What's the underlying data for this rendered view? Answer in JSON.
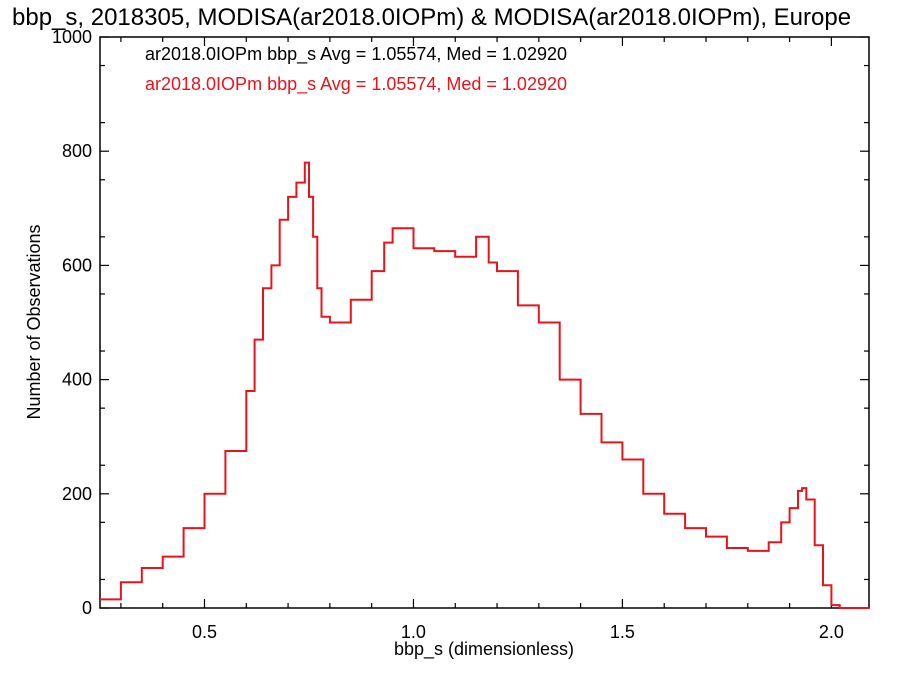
{
  "chart_data": {
    "type": "histogram",
    "title": "bbp_s, 2018305, MODISA(ar2018.0IOPm) & MODISA(ar2018.0IOPm), Europe",
    "xlabel": "bbp_s (dimensionless)",
    "ylabel": "Number of Observations",
    "xlim": [
      0.25,
      2.09
    ],
    "ylim": [
      0,
      1000
    ],
    "xticks": [
      "0.5",
      "1.0",
      "1.5",
      "2.0"
    ],
    "xtick_values": [
      0.5,
      1.0,
      1.5,
      2.0
    ],
    "yticks": [
      "0",
      "200",
      "400",
      "600",
      "800",
      "1000"
    ],
    "ytick_values": [
      0,
      200,
      400,
      600,
      800,
      1000
    ],
    "grid": false,
    "legend": [
      {
        "text": "ar2018.0IOPm bbp_s Avg = 1.05574, Med = 1.02920",
        "color": "#000000"
      },
      {
        "text": "ar2018.0IOPm bbp_s Avg = 1.05574, Med = 1.02920",
        "color": "#e8141c"
      }
    ],
    "series": [
      {
        "color": "#e8141c",
        "style": "step",
        "x": [
          0.25,
          0.3,
          0.35,
          0.4,
          0.45,
          0.5,
          0.55,
          0.6,
          0.62,
          0.64,
          0.66,
          0.68,
          0.7,
          0.72,
          0.74,
          0.75,
          0.76,
          0.77,
          0.78,
          0.8,
          0.85,
          0.9,
          0.93,
          0.95,
          1.0,
          1.05,
          1.1,
          1.15,
          1.18,
          1.2,
          1.25,
          1.3,
          1.35,
          1.4,
          1.45,
          1.5,
          1.55,
          1.6,
          1.65,
          1.7,
          1.75,
          1.8,
          1.85,
          1.88,
          1.9,
          1.92,
          1.93,
          1.94,
          1.96,
          1.98,
          2.0,
          2.02,
          2.09
        ],
        "y": [
          15,
          45,
          70,
          90,
          140,
          200,
          275,
          380,
          470,
          560,
          600,
          680,
          720,
          745,
          780,
          720,
          650,
          560,
          510,
          500,
          540,
          590,
          640,
          665,
          630,
          625,
          615,
          650,
          605,
          590,
          530,
          500,
          400,
          340,
          290,
          260,
          200,
          165,
          140,
          125,
          105,
          100,
          115,
          150,
          175,
          205,
          210,
          190,
          110,
          40,
          5,
          0,
          0
        ]
      }
    ]
  }
}
